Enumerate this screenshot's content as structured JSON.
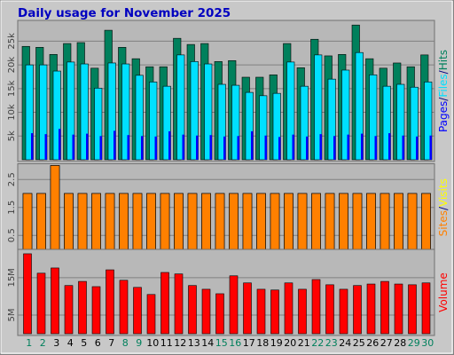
{
  "chart_data": [
    {
      "type": "bar",
      "title": "Daily usage for November 2025",
      "legend_separator": "/",
      "ylim": [
        0,
        29000
      ],
      "yticks": [
        {
          "value": 5000,
          "label": "5k"
        },
        {
          "value": 10000,
          "label": "10k"
        },
        {
          "value": 15000,
          "label": "15k"
        },
        {
          "value": 20000,
          "label": "20k"
        },
        {
          "value": 25000,
          "label": "25k"
        }
      ],
      "grid": true,
      "series": [
        {
          "name": "Hits",
          "color": "#00805c",
          "values": [
            23900,
            23700,
            22200,
            24500,
            24700,
            19300,
            27300,
            23700,
            21300,
            19600,
            19600,
            25600,
            24300,
            24500,
            20700,
            20900,
            17400,
            17400,
            17900,
            24500,
            19400,
            25400,
            21900,
            22200,
            28400,
            21300,
            19300,
            20400,
            19600,
            22100
          ]
        },
        {
          "name": "Files",
          "color": "#00e0ff",
          "values": [
            20000,
            20000,
            18700,
            20600,
            20200,
            15100,
            20400,
            20200,
            17800,
            16400,
            15500,
            22100,
            20700,
            20200,
            15900,
            15700,
            14200,
            13500,
            14000,
            20600,
            15500,
            22100,
            17000,
            18900,
            22600,
            17900,
            15500,
            15900,
            15300,
            16400
          ]
        },
        {
          "name": "Pages",
          "color": "#0000ff",
          "values": [
            5600,
            5400,
            6500,
            5300,
            5500,
            5000,
            6100,
            5200,
            5000,
            4900,
            6000,
            5300,
            5100,
            5200,
            4900,
            5000,
            6000,
            5100,
            4800,
            5300,
            4900,
            5400,
            5000,
            5300,
            5500,
            5000,
            5600,
            5100,
            4900,
            5100
          ]
        }
      ]
    },
    {
      "type": "bar",
      "legend_separator": "/",
      "ylim": [
        0,
        3
      ],
      "yticks": [
        0.5,
        1.5,
        2.5
      ],
      "grid": true,
      "series": [
        {
          "name": "Visits",
          "color": "#ffff00",
          "values": [
            2,
            2,
            3,
            2,
            2,
            2,
            2,
            2,
            2,
            2,
            2,
            2,
            2,
            2,
            2,
            2,
            2,
            2,
            2,
            2,
            2,
            2,
            2,
            2,
            2,
            2,
            2,
            2,
            2,
            2
          ]
        },
        {
          "name": "Sites",
          "color": "#ff8000",
          "values": [
            2,
            2,
            3,
            2,
            2,
            2,
            2,
            2,
            2,
            2,
            2,
            2,
            2,
            2,
            2,
            2,
            2,
            2,
            2,
            2,
            2,
            2,
            2,
            2,
            2,
            2,
            2,
            2,
            2,
            2
          ]
        }
      ]
    },
    {
      "type": "bar",
      "categories": [
        "1",
        "2",
        "3",
        "4",
        "5",
        "6",
        "7",
        "8",
        "9",
        "10",
        "11",
        "12",
        "13",
        "14",
        "15",
        "16",
        "17",
        "18",
        "19",
        "20",
        "21",
        "22",
        "23",
        "24",
        "25",
        "26",
        "27",
        "28",
        "29",
        "30"
      ],
      "category_colors": [
        "#00805c",
        "#00805c",
        "#000000",
        "#000000",
        "#000000",
        "#000000",
        "#000000",
        "#00805c",
        "#00805c",
        "#000000",
        "#000000",
        "#000000",
        "#000000",
        "#000000",
        "#00805c",
        "#00805c",
        "#000000",
        "#000000",
        "#000000",
        "#000000",
        "#000000",
        "#00805c",
        "#00805c",
        "#000000",
        "#000000",
        "#000000",
        "#000000",
        "#000000",
        "#00805c",
        "#00805c"
      ],
      "ylim": [
        0,
        22.1
      ],
      "yticks": [
        {
          "value": 5,
          "label": "5M"
        },
        {
          "value": 15,
          "label": "15M"
        }
      ],
      "grid": true,
      "series": [
        {
          "name": "Volume",
          "color": "#ff0000",
          "values": [
            21.4,
            16.2,
            17.6,
            12.9,
            14.0,
            12.6,
            17.1,
            14.3,
            12.4,
            10.5,
            16.4,
            16.0,
            12.9,
            11.9,
            10.7,
            15.5,
            13.6,
            11.9,
            11.7,
            13.6,
            11.9,
            14.5,
            13.1,
            11.9,
            12.9,
            13.3,
            14.0,
            13.3,
            13.1,
            13.6
          ]
        }
      ]
    }
  ]
}
